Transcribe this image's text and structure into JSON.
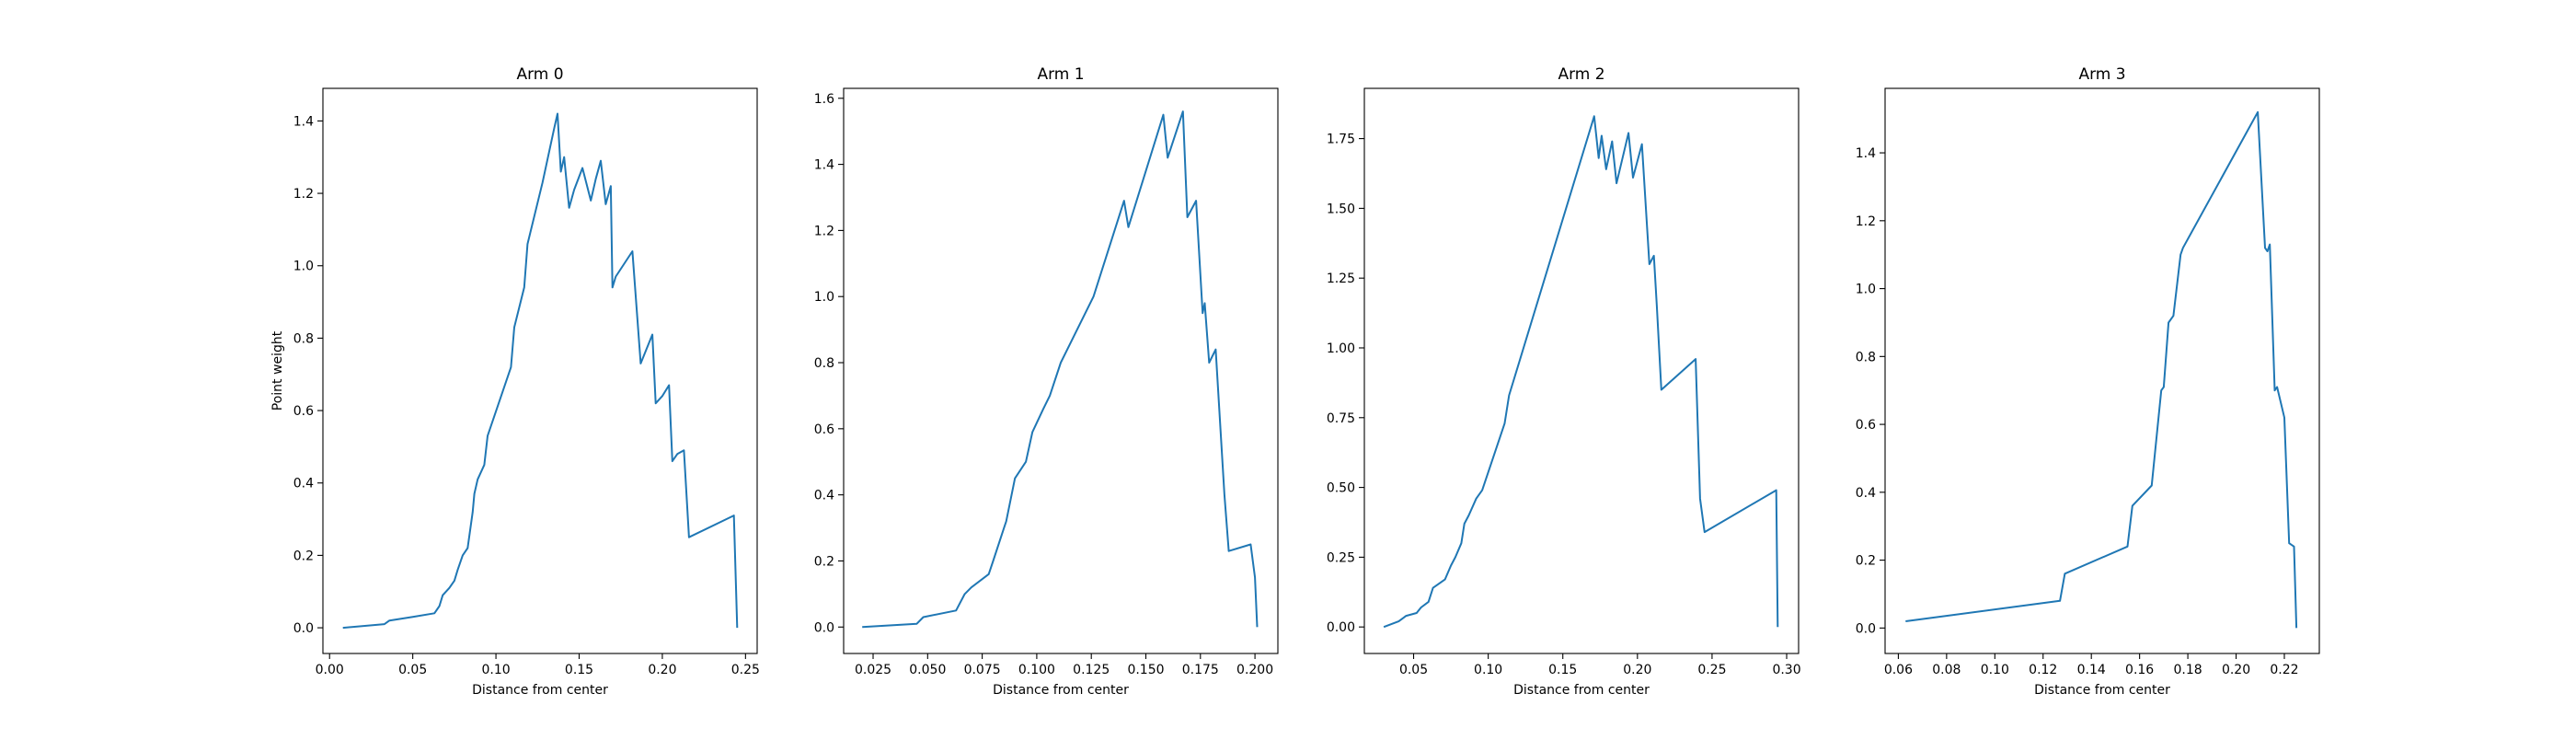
{
  "chart_data": [
    {
      "type": "line",
      "title": "Arm 0",
      "xlabel": "Distance from center",
      "ylabel": "Point weight",
      "xlim": [
        -0.004,
        0.257
      ],
      "ylim": [
        -0.071,
        1.49
      ],
      "xticks": [
        0.0,
        0.05,
        0.1,
        0.15,
        0.2,
        0.25
      ],
      "xtick_labels": [
        "0.00",
        "0.05",
        "0.10",
        "0.15",
        "0.20",
        "0.25"
      ],
      "yticks": [
        0.0,
        0.2,
        0.4,
        0.6,
        0.8,
        1.0,
        1.2,
        1.4
      ],
      "ytick_labels": [
        "0.0",
        "0.2",
        "0.4",
        "0.6",
        "0.8",
        "1.0",
        "1.2",
        "1.4"
      ],
      "grid": false,
      "color": "#1f77b4",
      "x": [
        0.008,
        0.033,
        0.036,
        0.05,
        0.063,
        0.066,
        0.068,
        0.072,
        0.075,
        0.077,
        0.08,
        0.083,
        0.086,
        0.087,
        0.089,
        0.093,
        0.095,
        0.109,
        0.111,
        0.117,
        0.119,
        0.128,
        0.135,
        0.137,
        0.139,
        0.141,
        0.144,
        0.147,
        0.152,
        0.157,
        0.16,
        0.163,
        0.166,
        0.169,
        0.17,
        0.172,
        0.182,
        0.187,
        0.194,
        0.196,
        0.2,
        0.204,
        0.206,
        0.209,
        0.213,
        0.216,
        0.243,
        0.245
      ],
      "y": [
        0.0,
        0.01,
        0.02,
        0.03,
        0.04,
        0.06,
        0.09,
        0.11,
        0.13,
        0.16,
        0.2,
        0.22,
        0.32,
        0.37,
        0.41,
        0.45,
        0.53,
        0.72,
        0.83,
        0.94,
        1.06,
        1.23,
        1.38,
        1.42,
        1.26,
        1.3,
        1.16,
        1.21,
        1.27,
        1.18,
        1.24,
        1.29,
        1.17,
        1.22,
        0.94,
        0.97,
        1.04,
        0.73,
        0.81,
        0.62,
        0.64,
        0.67,
        0.46,
        0.48,
        0.49,
        0.25,
        0.31,
        0.0
      ]
    },
    {
      "type": "line",
      "title": "Arm 1",
      "xlabel": "Distance from center",
      "ylabel": "",
      "xlim": [
        0.0115,
        0.2105
      ],
      "ylim": [
        -0.08,
        1.63
      ],
      "xticks": [
        0.025,
        0.05,
        0.075,
        0.1,
        0.125,
        0.15,
        0.175,
        0.2
      ],
      "xtick_labels": [
        "0.025",
        "0.050",
        "0.075",
        "0.100",
        "0.125",
        "0.150",
        "0.175",
        "0.200"
      ],
      "yticks": [
        0.0,
        0.2,
        0.4,
        0.6,
        0.8,
        1.0,
        1.2,
        1.4,
        1.6
      ],
      "ytick_labels": [
        "0.0",
        "0.2",
        "0.4",
        "0.6",
        "0.8",
        "1.0",
        "1.2",
        "1.4",
        "1.6"
      ],
      "grid": false,
      "color": "#1f77b4",
      "x": [
        0.02,
        0.045,
        0.048,
        0.063,
        0.067,
        0.07,
        0.078,
        0.08,
        0.085,
        0.086,
        0.09,
        0.095,
        0.098,
        0.103,
        0.106,
        0.111,
        0.126,
        0.14,
        0.142,
        0.158,
        0.16,
        0.167,
        0.169,
        0.173,
        0.176,
        0.177,
        0.179,
        0.182,
        0.186,
        0.188,
        0.198,
        0.2,
        0.201
      ],
      "y": [
        0.0,
        0.01,
        0.03,
        0.05,
        0.1,
        0.12,
        0.16,
        0.2,
        0.3,
        0.32,
        0.45,
        0.5,
        0.59,
        0.66,
        0.7,
        0.8,
        1.0,
        1.29,
        1.21,
        1.55,
        1.42,
        1.56,
        1.24,
        1.29,
        0.95,
        0.98,
        0.8,
        0.84,
        0.4,
        0.23,
        0.25,
        0.15,
        0.0
      ]
    },
    {
      "type": "line",
      "title": "Arm 2",
      "xlabel": "Distance from center",
      "ylabel": "",
      "xlim": [
        0.017,
        0.308
      ],
      "ylim": [
        -0.095,
        1.93
      ],
      "xticks": [
        0.05,
        0.1,
        0.15,
        0.2,
        0.25,
        0.3
      ],
      "xtick_labels": [
        "0.05",
        "0.10",
        "0.15",
        "0.20",
        "0.25",
        "0.30"
      ],
      "yticks": [
        0.0,
        0.25,
        0.5,
        0.75,
        1.0,
        1.25,
        1.5,
        1.75
      ],
      "ytick_labels": [
        "0.00",
        "0.25",
        "0.50",
        "0.75",
        "1.00",
        "1.25",
        "1.50",
        "1.75"
      ],
      "grid": false,
      "color": "#1f77b4",
      "x": [
        0.03,
        0.04,
        0.045,
        0.052,
        0.055,
        0.06,
        0.063,
        0.071,
        0.075,
        0.078,
        0.082,
        0.084,
        0.087,
        0.092,
        0.096,
        0.111,
        0.114,
        0.171,
        0.174,
        0.176,
        0.179,
        0.183,
        0.186,
        0.19,
        0.194,
        0.197,
        0.203,
        0.208,
        0.211,
        0.213,
        0.216,
        0.239,
        0.242,
        0.245,
        0.293,
        0.294
      ],
      "y": [
        0.0,
        0.02,
        0.04,
        0.05,
        0.07,
        0.09,
        0.14,
        0.17,
        0.22,
        0.25,
        0.3,
        0.37,
        0.4,
        0.46,
        0.49,
        0.73,
        0.83,
        1.83,
        1.68,
        1.76,
        1.64,
        1.74,
        1.59,
        1.68,
        1.77,
        1.61,
        1.73,
        1.3,
        1.33,
        1.15,
        0.85,
        0.96,
        0.46,
        0.34,
        0.49,
        0.0
      ]
    },
    {
      "type": "line",
      "title": "Arm 3",
      "xlabel": "Distance from center",
      "ylabel": "",
      "xlim": [
        0.0545,
        0.2345
      ],
      "ylim": [
        -0.075,
        1.59
      ],
      "xticks": [
        0.06,
        0.08,
        0.1,
        0.12,
        0.14,
        0.16,
        0.18,
        0.2,
        0.22
      ],
      "xtick_labels": [
        "0.06",
        "0.08",
        "0.10",
        "0.12",
        "0.14",
        "0.16",
        "0.18",
        "0.20",
        "0.22"
      ],
      "yticks": [
        0.0,
        0.2,
        0.4,
        0.6,
        0.8,
        1.0,
        1.2,
        1.4
      ],
      "ytick_labels": [
        "0.0",
        "0.2",
        "0.4",
        "0.6",
        "0.8",
        "1.0",
        "1.2",
        "1.4"
      ],
      "grid": false,
      "color": "#1f77b4",
      "x": [
        0.063,
        0.127,
        0.129,
        0.155,
        0.157,
        0.165,
        0.169,
        0.17,
        0.172,
        0.174,
        0.177,
        0.178,
        0.209,
        0.212,
        0.213,
        0.214,
        0.216,
        0.217,
        0.22,
        0.222,
        0.224,
        0.225
      ],
      "y": [
        0.02,
        0.08,
        0.16,
        0.24,
        0.36,
        0.42,
        0.7,
        0.71,
        0.9,
        0.92,
        1.1,
        1.12,
        1.52,
        1.12,
        1.11,
        1.13,
        0.7,
        0.71,
        0.62,
        0.25,
        0.24,
        0.0
      ]
    }
  ]
}
